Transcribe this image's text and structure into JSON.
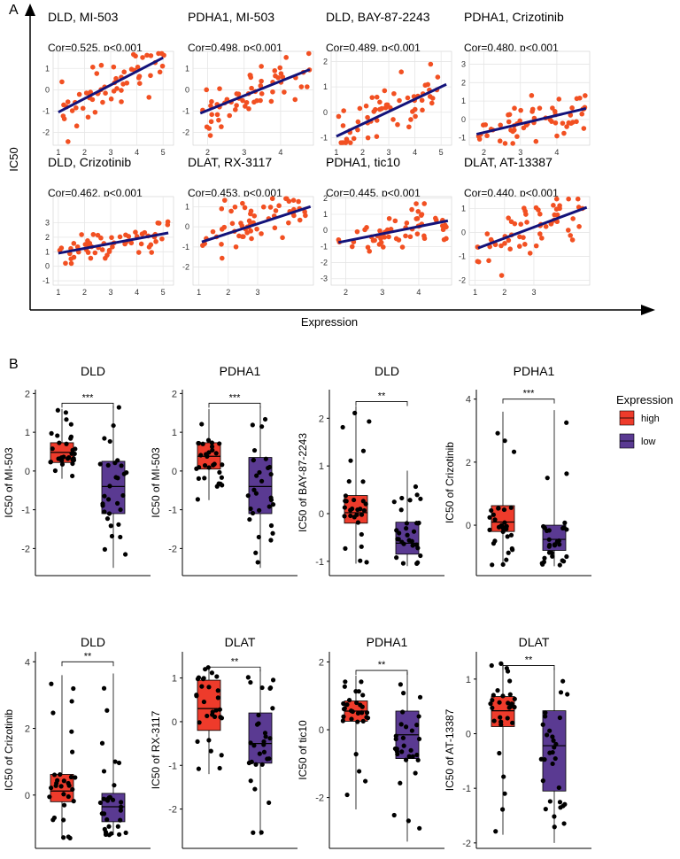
{
  "figure": {
    "panel_a_label": "A",
    "panel_b_label": "B",
    "a_ylabel": "IC50",
    "a_xlabel": "Expression",
    "legend_title": "Expression",
    "legend_items": [
      {
        "label": "high",
        "color": "#ee3b2b"
      },
      {
        "label": "low",
        "color": "#5a3a92"
      }
    ],
    "colors": {
      "point": "#f25022",
      "line": "#13137a",
      "high": "#ee3b2b",
      "low": "#5a3a92",
      "grid": "#e6e6e6"
    }
  },
  "chart_data": [
    {
      "type": "scatter",
      "panel": "A",
      "title": "DLD, MI-503",
      "subtitle": "Cor=0.525, p<0.001",
      "xlim": [
        0.8,
        5.4
      ],
      "ylim": [
        -2.6,
        1.8
      ],
      "xticks": [
        1,
        2,
        3,
        4,
        5
      ],
      "yticks": [
        -2,
        -1,
        0,
        1
      ],
      "fit": [
        [
          1,
          -1.05
        ],
        [
          5,
          1.5
        ]
      ],
      "seed": 11,
      "xr": [
        1,
        5.1
      ],
      "noise": 0.75
    },
    {
      "type": "scatter",
      "panel": "A",
      "title": "PDHA1, MI-503",
      "subtitle": "Cor=0.498, p<0.001",
      "xlim": [
        1.6,
        4.9
      ],
      "ylim": [
        -2.6,
        1.8
      ],
      "xticks": [
        2,
        3,
        4
      ],
      "yticks": [
        -2,
        -1,
        0,
        1
      ],
      "fit": [
        [
          1.8,
          -1.1
        ],
        [
          4.8,
          0.95
        ]
      ],
      "seed": 23,
      "xr": [
        1.8,
        4.8
      ],
      "noise": 0.75
    },
    {
      "type": "scatter",
      "panel": "A",
      "title": "DLD, BAY-87-2243",
      "subtitle": "Cor=0.489, p<0.001",
      "xlim": [
        0.8,
        5.4
      ],
      "ylim": [
        -1.3,
        2.4
      ],
      "xticks": [
        1,
        2,
        3,
        4,
        5
      ],
      "yticks": [
        -1,
        0,
        1,
        2
      ],
      "fit": [
        [
          1,
          -0.95
        ],
        [
          5.2,
          1.1
        ]
      ],
      "seed": 37,
      "xr": [
        1,
        5.2
      ],
      "noise": 0.6
    },
    {
      "type": "scatter",
      "panel": "A",
      "title": "PDHA1, Crizotinib",
      "subtitle": "Cor=0.480, p<0.001",
      "xlim": [
        1.6,
        4.9
      ],
      "ylim": [
        -1.4,
        3.7
      ],
      "xticks": [
        2,
        3,
        4
      ],
      "yticks": [
        -1,
        0,
        1,
        2,
        3
      ],
      "fit": [
        [
          1.8,
          -0.8
        ],
        [
          4.8,
          0.6
        ]
      ],
      "seed": 41,
      "xr": [
        1.8,
        4.8
      ],
      "noise": 0.7
    },
    {
      "type": "scatter",
      "panel": "A",
      "title": "DLD, Crizotinib",
      "subtitle": "Cor=0.462, p<0.001",
      "xlim": [
        0.8,
        5.4
      ],
      "ylim": [
        -1.3,
        4.8
      ],
      "xticks": [
        1,
        2,
        3,
        4,
        5
      ],
      "yticks": [
        -1,
        0,
        1,
        2,
        3
      ],
      "fit": [
        [
          1,
          0.9
        ],
        [
          5.2,
          2.3
        ]
      ],
      "seed": 53,
      "xr": [
        1,
        5.2
      ],
      "noise": 0.7
    },
    {
      "type": "scatter",
      "panel": "A",
      "title": "DLAT, RX-3117",
      "subtitle": "Cor=0.453, p<0.001",
      "xlim": [
        0.8,
        4.9
      ],
      "ylim": [
        -2.9,
        1.5
      ],
      "xticks": [
        1,
        2,
        3
      ],
      "yticks": [
        -2,
        -1,
        0,
        1
      ],
      "fit": [
        [
          1.1,
          -0.75
        ],
        [
          4.8,
          1.0
        ]
      ],
      "seed": 61,
      "xr": [
        1,
        4.7
      ],
      "noise": 0.8
    },
    {
      "type": "scatter",
      "panel": "A",
      "title": "PDHA1, tic10",
      "subtitle": "Cor=0.445, p<0.001",
      "xlim": [
        1.6,
        4.9
      ],
      "ylim": [
        -3.4,
        2.1
      ],
      "xticks": [
        2,
        3,
        4
      ],
      "yticks": [
        -3,
        -2,
        -1,
        0,
        1,
        2
      ],
      "fit": [
        [
          1.8,
          -0.75
        ],
        [
          4.8,
          0.6
        ]
      ],
      "seed": 71,
      "xr": [
        1.8,
        4.8
      ],
      "noise": 0.7
    },
    {
      "type": "scatter",
      "panel": "A",
      "title": "DLAT, AT-13387",
      "subtitle": "Cor=0.440, p<0.001",
      "xlim": [
        0.8,
        4.9
      ],
      "ylim": [
        -2.2,
        1.5
      ],
      "xticks": [
        1,
        2,
        3
      ],
      "yticks": [
        -2,
        -1,
        0,
        1
      ],
      "fit": [
        [
          1.1,
          -0.65
        ],
        [
          4.8,
          1.05
        ]
      ],
      "seed": 83,
      "xr": [
        1,
        4.7
      ],
      "noise": 0.7
    },
    {
      "type": "box",
      "panel": "B",
      "title": "DLD",
      "ylabel": "IC50 of MI-503",
      "ylim": [
        -2.7,
        2.1
      ],
      "yticks": [
        -2,
        -1,
        0,
        1,
        2
      ],
      "sig": "***",
      "bracket_y": 1.75,
      "seed": 101,
      "groups": [
        {
          "name": "high",
          "q1": 0.22,
          "med": 0.48,
          "q3": 0.73,
          "lo": -0.2,
          "hi": 1.6
        },
        {
          "name": "low",
          "q1": -1.1,
          "med": -0.4,
          "q3": 0.25,
          "lo": -2.5,
          "hi": 1.67
        }
      ]
    },
    {
      "type": "box",
      "panel": "B",
      "title": "PDHA1",
      "ylabel": "IC50 of MI-503",
      "ylim": [
        -2.7,
        2.1
      ],
      "yticks": [
        -2,
        -1,
        0,
        1,
        2
      ],
      "sig": "***",
      "bracket_y": 1.75,
      "seed": 113,
      "groups": [
        {
          "name": "high",
          "q1": 0.05,
          "med": 0.38,
          "q3": 0.73,
          "lo": -0.75,
          "hi": 1.6
        },
        {
          "name": "low",
          "q1": -1.1,
          "med": -0.4,
          "q3": 0.35,
          "lo": -2.5,
          "hi": 1.67
        }
      ]
    },
    {
      "type": "box",
      "panel": "B",
      "title": "DLD",
      "ylabel": "IC50 of BAY-87-2243",
      "ylim": [
        -1.3,
        2.6
      ],
      "yticks": [
        -1,
        0,
        1,
        2
      ],
      "sig": "**",
      "bracket_y": 2.35,
      "seed": 127,
      "groups": [
        {
          "name": "high",
          "q1": -0.2,
          "med": 0.02,
          "q3": 0.38,
          "lo": -1.05,
          "hi": 2.25
        },
        {
          "name": "low",
          "q1": -0.85,
          "med": -0.62,
          "q3": -0.18,
          "lo": -1.1,
          "hi": 0.9
        }
      ]
    },
    {
      "type": "box",
      "panel": "B",
      "title": "PDHA1",
      "ylabel": "IC50 of Crizotinib",
      "ylim": [
        -1.6,
        4.3
      ],
      "yticks": [
        0,
        2,
        4
      ],
      "sig": "***",
      "bracket_y": 4.0,
      "seed": 131,
      "groups": [
        {
          "name": "high",
          "q1": -0.2,
          "med": 0.1,
          "q3": 0.62,
          "lo": -1.3,
          "hi": 3.6
        },
        {
          "name": "low",
          "q1": -0.8,
          "med": -0.45,
          "q3": 0.0,
          "lo": -1.3,
          "hi": 3.65
        }
      ]
    },
    {
      "type": "box",
      "panel": "B",
      "title": "DLD",
      "ylabel": "IC50 of Crizotinib",
      "ylim": [
        -1.6,
        4.3
      ],
      "yticks": [
        0,
        2,
        4
      ],
      "sig": "**",
      "bracket_y": 4.0,
      "seed": 139,
      "groups": [
        {
          "name": "high",
          "q1": -0.2,
          "med": 0.12,
          "q3": 0.62,
          "lo": -1.3,
          "hi": 3.6
        },
        {
          "name": "low",
          "q1": -0.8,
          "med": -0.35,
          "q3": 0.05,
          "lo": -1.2,
          "hi": 3.65
        }
      ]
    },
    {
      "type": "box",
      "panel": "B",
      "title": "DLAT",
      "ylabel": "IC50 of RX-3117",
      "ylim": [
        -2.9,
        1.6
      ],
      "yticks": [
        -2,
        -1,
        0,
        1
      ],
      "sig": "**",
      "bracket_y": 1.25,
      "seed": 149,
      "groups": [
        {
          "name": "high",
          "q1": -0.2,
          "med": 0.3,
          "q3": 0.95,
          "lo": -1.2,
          "hi": 1.25
        },
        {
          "name": "low",
          "q1": -0.95,
          "med": -0.5,
          "q3": 0.2,
          "lo": -2.6,
          "hi": 1.2
        }
      ]
    },
    {
      "type": "box",
      "panel": "B",
      "title": "PDHA1",
      "ylabel": "IC50 of tic10",
      "ylim": [
        -3.5,
        2.3
      ],
      "yticks": [
        -2,
        0,
        2
      ],
      "sig": "**",
      "bracket_y": 1.75,
      "seed": 157,
      "groups": [
        {
          "name": "high",
          "q1": 0.25,
          "med": 0.55,
          "q3": 0.85,
          "lo": -2.35,
          "hi": 1.6
        },
        {
          "name": "low",
          "q1": -0.85,
          "med": -0.15,
          "q3": 0.55,
          "lo": -3.3,
          "hi": 1.7
        }
      ]
    },
    {
      "type": "box",
      "panel": "B",
      "title": "DLAT",
      "ylabel": "IC50 of AT-13387",
      "ylim": [
        -2.1,
        1.5
      ],
      "yticks": [
        -2,
        -1,
        0,
        1
      ],
      "sig": "**",
      "bracket_y": 1.25,
      "seed": 163,
      "groups": [
        {
          "name": "high",
          "q1": 0.13,
          "med": 0.42,
          "q3": 0.68,
          "lo": -1.85,
          "hi": 1.3
        },
        {
          "name": "low",
          "q1": -1.05,
          "med": -0.22,
          "q3": 0.42,
          "lo": -2.0,
          "hi": 1.2
        }
      ]
    }
  ]
}
